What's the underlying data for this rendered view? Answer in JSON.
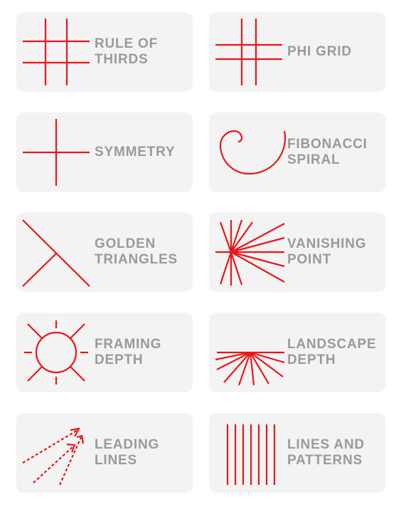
{
  "colors": {
    "accent": "#e8171d",
    "card_bg": "#f3f3f3",
    "label": "#9a9a9a"
  },
  "cards": [
    {
      "lines": [
        "RULE OF",
        "THIRDS"
      ],
      "icon": "rule-of-thirds-icon"
    },
    {
      "lines": [
        "PHI GRID"
      ],
      "icon": "phi-grid-icon"
    },
    {
      "lines": [
        "SYMMETRY"
      ],
      "icon": "symmetry-icon"
    },
    {
      "lines": [
        "FIBONACCI",
        "SPIRAL"
      ],
      "icon": "fibonacci-spiral-icon"
    },
    {
      "lines": [
        "GOLDEN",
        "TRIANGLES"
      ],
      "icon": "golden-triangles-icon"
    },
    {
      "lines": [
        "VANISHING",
        "POINT"
      ],
      "icon": "vanishing-point-icon"
    },
    {
      "lines": [
        "FRAMING",
        "DEPTH"
      ],
      "icon": "framing-depth-icon"
    },
    {
      "lines": [
        "LANDSCAPE",
        "DEPTH"
      ],
      "icon": "landscape-depth-icon"
    },
    {
      "lines": [
        "LEADING",
        "LINES"
      ],
      "icon": "leading-lines-icon"
    },
    {
      "lines": [
        "LINES AND",
        "PATTERNS"
      ],
      "icon": "lines-and-patterns-icon"
    }
  ]
}
